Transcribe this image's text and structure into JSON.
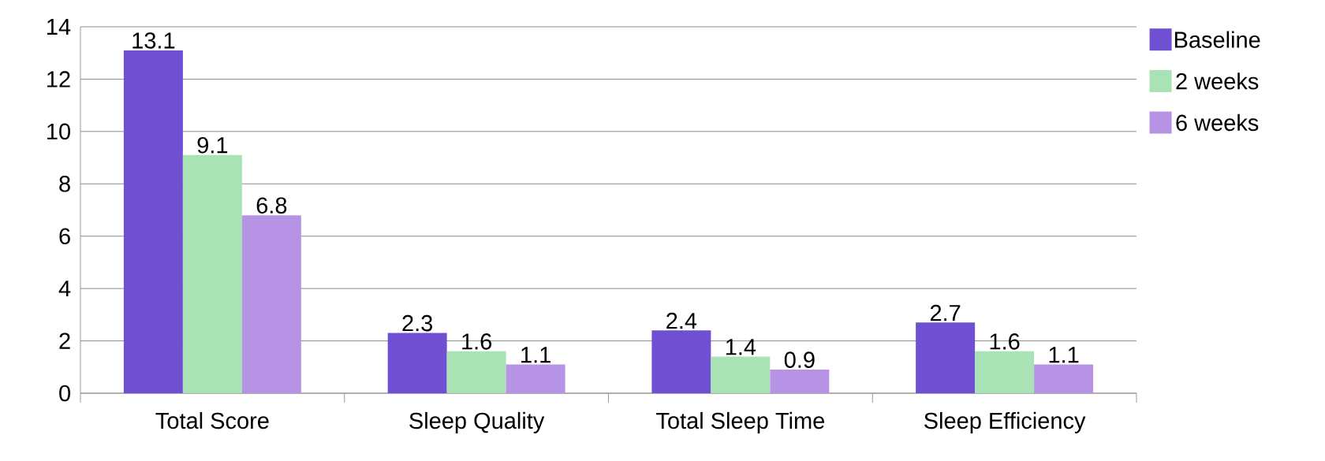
{
  "chart_data": {
    "type": "bar",
    "categories": [
      "Total Score",
      "Sleep Quality",
      "Total Sleep Time",
      "Sleep Efficiency"
    ],
    "series": [
      {
        "name": "Baseline",
        "color": "#6f4fd2",
        "values": [
          13.1,
          2.3,
          2.4,
          2.7
        ]
      },
      {
        "name": "2 weeks",
        "color": "#a9e2b4",
        "values": [
          9.1,
          1.6,
          1.4,
          1.6
        ]
      },
      {
        "name": "6 weeks",
        "color": "#b793e6",
        "values": [
          6.8,
          1.1,
          0.9,
          1.1
        ]
      }
    ],
    "ylim": [
      0,
      14
    ],
    "yticks": [
      0,
      2,
      4,
      6,
      8,
      10,
      12,
      14
    ],
    "grid": "y",
    "legend": "right",
    "data_labels": true
  }
}
